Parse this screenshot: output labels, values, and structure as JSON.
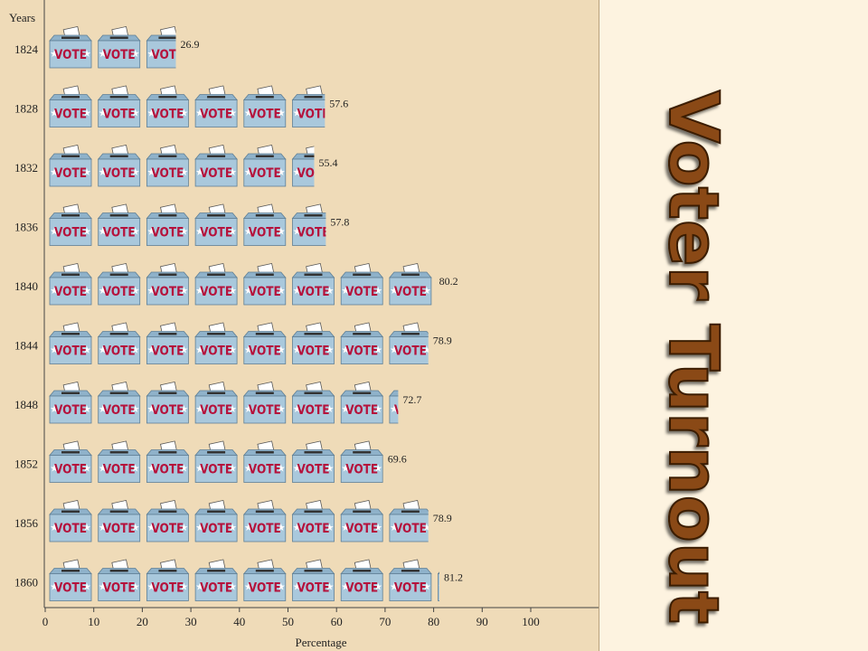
{
  "side_title": "Voter Turnout",
  "chart_data": {
    "type": "bar",
    "subtype": "pictograph",
    "orientation": "horizontal",
    "ylabel": "Years",
    "xlabel": "Percentage",
    "categories": [
      "1824",
      "1828",
      "1832",
      "1836",
      "1840",
      "1844",
      "1848",
      "1852",
      "1856",
      "1860"
    ],
    "values": [
      26.9,
      57.6,
      55.4,
      57.8,
      80.2,
      78.9,
      72.7,
      69.6,
      78.9,
      81.2
    ],
    "value_labels": [
      "26.9",
      "57.6",
      "55.4",
      "57.8",
      "80.2",
      "78.9",
      "72.7",
      "69.6",
      "78.9",
      "81.2"
    ],
    "icon_text": "VOTE",
    "icon_value": 10,
    "xlim": [
      0,
      100
    ],
    "xticks": [
      0,
      10,
      20,
      30,
      40,
      50,
      60,
      70,
      80,
      90,
      100
    ],
    "grid": false,
    "colors": {
      "panel": "#efdbb8",
      "box": "#a9c8dc",
      "box_top": "#8fb2ca",
      "vote_text": "#b5123c",
      "star": "#ffffff",
      "title_fill": "#8a4a12",
      "title_edge": "#3a1e06"
    }
  }
}
